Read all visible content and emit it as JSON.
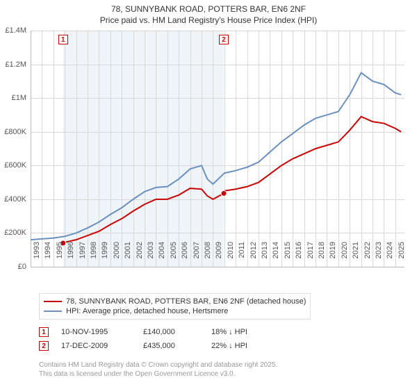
{
  "title": {
    "line1": "78, SUNNYBANK ROAD, POTTERS BAR, EN6 2NF",
    "line2": "Price paid vs. HM Land Registry's House Price Index (HPI)"
  },
  "chart": {
    "type": "line",
    "x_years": [
      1993,
      1994,
      1995,
      1996,
      1997,
      1998,
      1999,
      2000,
      2001,
      2002,
      2003,
      2004,
      2005,
      2006,
      2007,
      2008,
      2009,
      2010,
      2011,
      2012,
      2013,
      2014,
      2015,
      2016,
      2017,
      2018,
      2019,
      2020,
      2021,
      2022,
      2023,
      2024,
      2025
    ],
    "x_min": 1993,
    "x_max": 2025.8,
    "y_min": 0,
    "y_max": 1400000,
    "y_ticks": [
      0,
      200000,
      400000,
      600000,
      800000,
      1000000,
      1200000,
      1400000
    ],
    "y_tick_labels": [
      "£0",
      "£200K",
      "£400K",
      "£600K",
      "£800K",
      "£1M",
      "£1.2M",
      "£1.4M"
    ],
    "xtick_fontsize": 11,
    "ytick_fontsize": 11,
    "background_color": "#ffffff",
    "grid_color": "#d8d8d8",
    "shaded_region": {
      "x_start": 1995.85,
      "x_end": 2009.95,
      "color": "#e8f0f6"
    },
    "series": [
      {
        "name": "property",
        "color": "#cc0000",
        "width": 2,
        "x": [
          1995.85,
          1996,
          1997,
          1998,
          1999,
          2000,
          2001,
          2002,
          2003,
          2004,
          2005,
          2006,
          2007,
          2008,
          2008.5,
          2009,
          2009.95,
          2010,
          2011,
          2012,
          2013,
          2014,
          2015,
          2016,
          2017,
          2018,
          2019,
          2020,
          2021,
          2022,
          2023,
          2024,
          2025,
          2025.5
        ],
        "y": [
          140000,
          145000,
          160000,
          185000,
          210000,
          250000,
          285000,
          330000,
          370000,
          400000,
          400000,
          425000,
          465000,
          460000,
          420000,
          400000,
          435000,
          450000,
          460000,
          475000,
          500000,
          550000,
          600000,
          640000,
          670000,
          700000,
          720000,
          740000,
          810000,
          890000,
          860000,
          850000,
          820000,
          800000
        ]
      },
      {
        "name": "hpi",
        "color": "#6a8fbf",
        "width": 2,
        "x": [
          1993,
          1994,
          1995,
          1996,
          1997,
          1998,
          1999,
          2000,
          2001,
          2002,
          2003,
          2004,
          2005,
          2006,
          2007,
          2008,
          2008.5,
          2009,
          2010,
          2011,
          2012,
          2013,
          2014,
          2015,
          2016,
          2017,
          2018,
          2019,
          2020,
          2021,
          2022,
          2023,
          2024,
          2025,
          2025.5
        ],
        "y": [
          160000,
          165000,
          170000,
          180000,
          200000,
          230000,
          265000,
          310000,
          350000,
          400000,
          445000,
          470000,
          475000,
          520000,
          580000,
          600000,
          520000,
          490000,
          555000,
          570000,
          590000,
          620000,
          680000,
          740000,
          790000,
          840000,
          880000,
          900000,
          920000,
          1020000,
          1150000,
          1100000,
          1080000,
          1030000,
          1020000
        ]
      }
    ],
    "transaction_markers": [
      {
        "id": "1",
        "x": 1995.85,
        "y": 140000
      },
      {
        "id": "2",
        "x": 2009.95,
        "y": 435000
      }
    ]
  },
  "legend": {
    "items": [
      {
        "color": "#cc0000",
        "label": "78, SUNNYBANK ROAD, POTTERS BAR, EN6 2NF (detached house)"
      },
      {
        "color": "#6a8fbf",
        "label": "HPI: Average price, detached house, Hertsmere"
      }
    ]
  },
  "transactions": [
    {
      "id": "1",
      "date": "10-NOV-1995",
      "price": "£140,000",
      "diff": "18% ↓ HPI"
    },
    {
      "id": "2",
      "date": "17-DEC-2009",
      "price": "£435,000",
      "diff": "22% ↓ HPI"
    }
  ],
  "footnote": {
    "line1": "Contains HM Land Registry data © Crown copyright and database right 2025.",
    "line2": "This data is licensed under the Open Government Licence v3.0."
  }
}
